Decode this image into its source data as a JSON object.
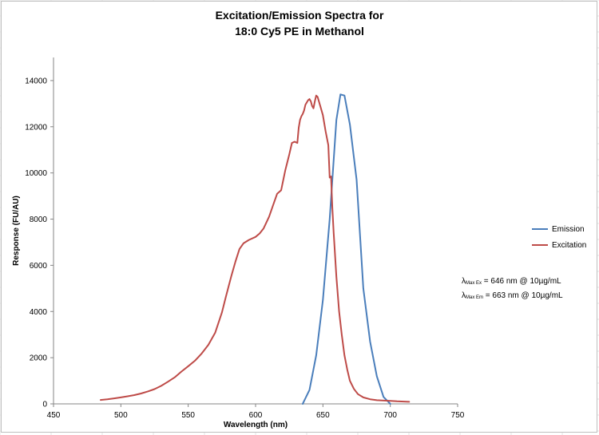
{
  "chart_data": {
    "type": "line",
    "title_line1": "Excitation/Emission Spectra for",
    "title_line2": "18:0 Cy5 PE in Methanol",
    "xlabel": "Wavelength (nm)",
    "ylabel": "Response (FU/AU)",
    "xlim": [
      450,
      750
    ],
    "ylim": [
      0,
      15000
    ],
    "xticks": [
      450,
      500,
      550,
      600,
      650,
      700,
      750
    ],
    "yticks": [
      0,
      2000,
      4000,
      6000,
      8000,
      10000,
      12000,
      14000
    ],
    "grid": false,
    "legend_position": "right",
    "series": [
      {
        "name": "Emission",
        "color": "#4a7ebb",
        "x": [
          635,
          640,
          645,
          650,
          655,
          660,
          663,
          666,
          670,
          675,
          680,
          685,
          690,
          695,
          700
        ],
        "y": [
          0,
          600,
          2100,
          4500,
          8000,
          12300,
          13400,
          13350,
          12100,
          9700,
          5000,
          2700,
          1200,
          300,
          0
        ]
      },
      {
        "name": "Excitation",
        "color": "#be4b48",
        "x": [
          485,
          490,
          495,
          500,
          505,
          510,
          515,
          520,
          525,
          530,
          535,
          540,
          545,
          550,
          555,
          560,
          565,
          570,
          575,
          578,
          582,
          585,
          588,
          591,
          595,
          600,
          603,
          606,
          610,
          613,
          616,
          619,
          622,
          625,
          627,
          629,
          631,
          632,
          633,
          634,
          635,
          636,
          637,
          638,
          639,
          640,
          641,
          642,
          643,
          644,
          645,
          646,
          647,
          648,
          650,
          652,
          654,
          655,
          656,
          657,
          658,
          660,
          662,
          664,
          666,
          668,
          670,
          673,
          676,
          680,
          685,
          690,
          700,
          705,
          710,
          714
        ],
        "y": [
          170,
          200,
          240,
          280,
          330,
          380,
          450,
          540,
          640,
          780,
          960,
          1150,
          1400,
          1630,
          1870,
          2180,
          2560,
          3080,
          3950,
          4650,
          5530,
          6150,
          6700,
          6950,
          7100,
          7230,
          7380,
          7600,
          8100,
          8600,
          9100,
          9250,
          10100,
          10800,
          11300,
          11350,
          11300,
          11950,
          12300,
          12450,
          12550,
          12700,
          12950,
          13050,
          13150,
          13200,
          13100,
          12900,
          12800,
          13100,
          13350,
          13300,
          13100,
          12900,
          12500,
          11800,
          11200,
          9800,
          9850,
          8500,
          7400,
          5500,
          4000,
          3000,
          2100,
          1500,
          1000,
          650,
          420,
          280,
          200,
          160,
          130,
          110,
          100,
          90
        ]
      }
    ],
    "annotations": [
      {
        "lambda": "λ",
        "sub": "Max Ex",
        "text": " = 646 nm @ 10µg/mL"
      },
      {
        "lambda": "λ",
        "sub": "Max Em",
        "text": " = 663 nm @ 10µg/mL"
      }
    ]
  }
}
